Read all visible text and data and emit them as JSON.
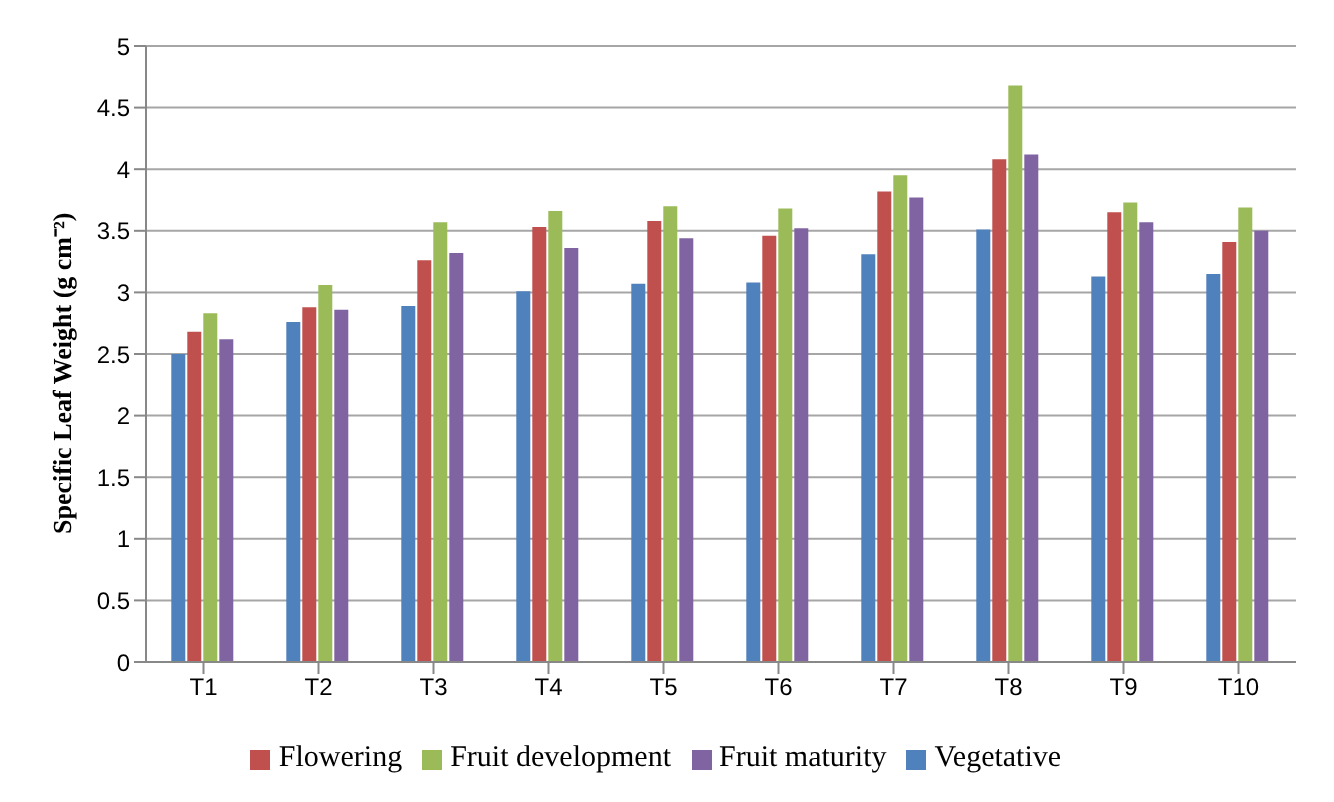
{
  "chart_data": {
    "type": "bar",
    "ylabel": "Specific Leaf Weight (g cm⁻²)",
    "categories": [
      "T1",
      "T2",
      "T3",
      "T4",
      "T5",
      "T6",
      "T7",
      "T8",
      "T9",
      "T10"
    ],
    "series": [
      {
        "name": "Vegetative",
        "color": "#4f81bd",
        "values": [
          2.5,
          2.76,
          2.89,
          3.01,
          3.07,
          3.08,
          3.31,
          3.51,
          3.13,
          3.15
        ]
      },
      {
        "name": "Flowering",
        "color": "#c0504d",
        "values": [
          2.68,
          2.88,
          3.26,
          3.53,
          3.58,
          3.46,
          3.82,
          4.08,
          3.65,
          3.41
        ]
      },
      {
        "name": "Fruit development",
        "color": "#9bbb59",
        "values": [
          2.83,
          3.06,
          3.57,
          3.66,
          3.7,
          3.68,
          3.95,
          4.68,
          3.73,
          3.69
        ]
      },
      {
        "name": "Fruit maturity",
        "color": "#8064a2",
        "values": [
          2.62,
          2.86,
          3.32,
          3.36,
          3.44,
          3.52,
          3.77,
          4.12,
          3.57,
          3.5
        ]
      }
    ],
    "ylim": [
      0,
      5
    ],
    "yticks": [
      0,
      0.5,
      1,
      1.5,
      2,
      2.5,
      3,
      3.5,
      4,
      4.5,
      5
    ],
    "grid": "y",
    "legend": "bottom"
  }
}
